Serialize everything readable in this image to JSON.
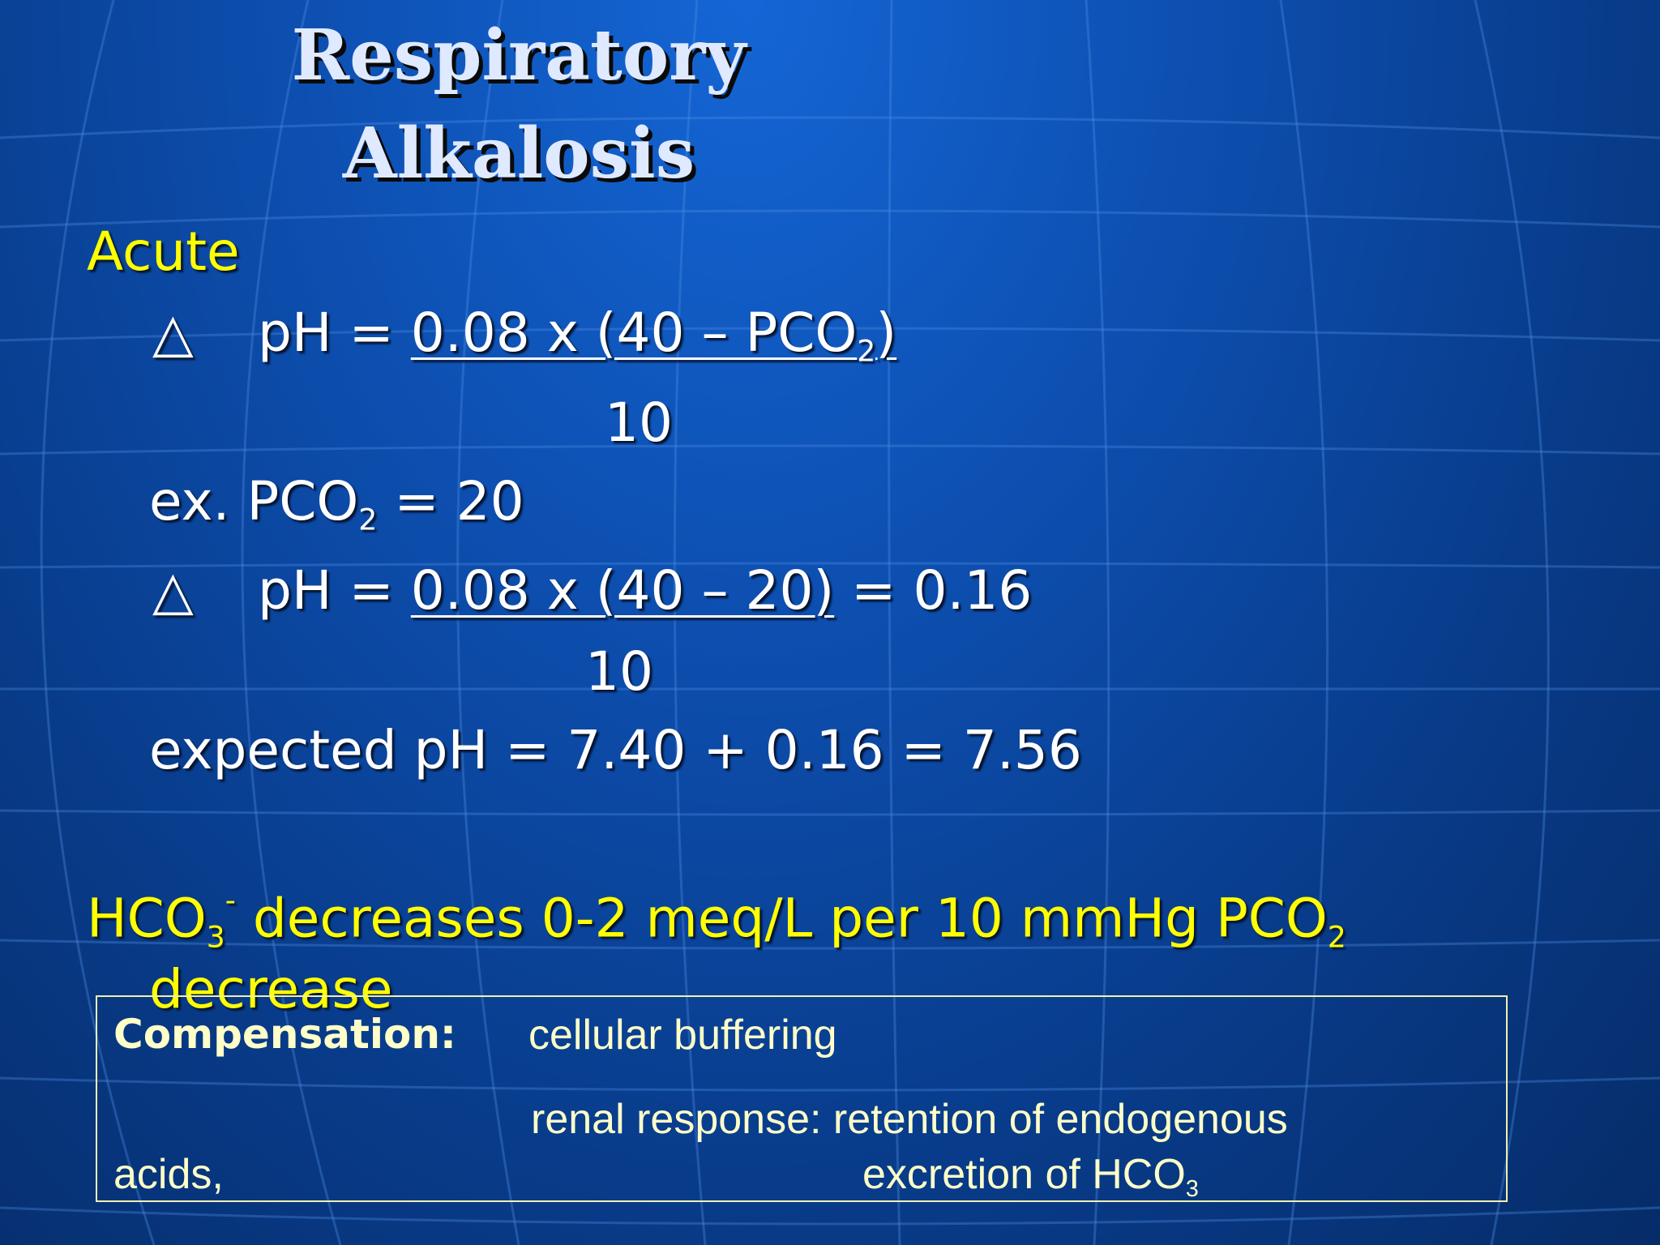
{
  "slide": {
    "title_line1": "Respiratory",
    "title_line2": "Alkalosis",
    "heading_acute": "Acute",
    "delta_symbol": "△",
    "eq1_lhs": "pH = ",
    "eq1_numerator_pre": "0.08 x (40 – PCO",
    "eq1_numerator_sub": "2",
    "eq1_numerator_post": ")",
    "eq1_denominator": "10",
    "example_pre": "ex. PCO",
    "example_sub": "2",
    "example_post": " = 20",
    "eq2_lhs": "pH = ",
    "eq2_numerator": "0.08 x (40 – 20)",
    "eq2_result": " = 0.16",
    "eq2_denominator": "10",
    "expected_ph": "expected pH = 7.40 + 0.16 = 7.56",
    "hco3_pre": "HCO",
    "hco3_sub": "3",
    "hco3_sup": "-",
    "hco3_mid": " decreases 0-2 meq/L per 10 mmHg PCO",
    "hco3_sub2": "2",
    "hco3_line2": "decrease"
  },
  "compensation": {
    "label": "Compensation:",
    "line1": "cellular buffering",
    "line2": "renal response: retention of endogenous",
    "line3_left": "acids,",
    "line3_right_pre": "excretion of HCO",
    "line3_right_sub": "3"
  },
  "colors": {
    "accent_yellow": "#ffff00",
    "text_white": "#ffffff",
    "background_blue": "#0d4fb0"
  }
}
